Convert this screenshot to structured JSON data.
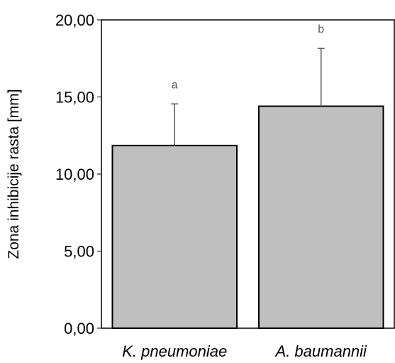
{
  "chart_data": {
    "type": "bar",
    "title": "",
    "xlabel": "",
    "ylabel": "Zona inhibicije rasta [mm]",
    "categories": [
      "K. pneumoniae",
      "A. baumannii"
    ],
    "values": [
      11.85,
      14.4
    ],
    "error": [
      2.7,
      3.75
    ],
    "significance": [
      "a",
      "b"
    ],
    "ylim": [
      0,
      20
    ],
    "yticks": [
      "0,00",
      "5,00",
      "10,00",
      "15,00",
      "20,00"
    ],
    "bar_color": "#bfbfbf",
    "error_color": "#595959",
    "grid": false,
    "legend": "none"
  }
}
